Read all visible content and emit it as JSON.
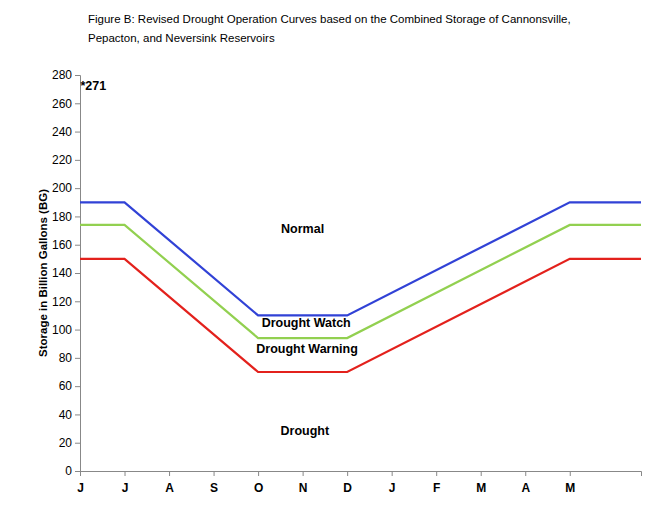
{
  "chart_data": {
    "type": "line",
    "title": [
      "Figure B: Revised Drought Operation Curves based on the Combined Storage of Cannonsville,",
      "Pepacton, and Neversink Reservoirs"
    ],
    "y_label": "Storage in Billion Gallons (BG)",
    "x": [
      0,
      1,
      4,
      6,
      11,
      12.6
    ],
    "xlim": [
      0,
      12.6
    ],
    "xticks": [
      {
        "value": 0,
        "label": "J"
      },
      {
        "value": 1,
        "label": "J"
      },
      {
        "value": 2,
        "label": "A"
      },
      {
        "value": 3,
        "label": "S"
      },
      {
        "value": 4,
        "label": "O"
      },
      {
        "value": 5,
        "label": "N"
      },
      {
        "value": 6,
        "label": "D"
      },
      {
        "value": 7,
        "label": "J"
      },
      {
        "value": 8,
        "label": "F"
      },
      {
        "value": 9,
        "label": "M"
      },
      {
        "value": 10,
        "label": "A"
      },
      {
        "value": 11,
        "label": "M"
      }
    ],
    "ylim": [
      0,
      280
    ],
    "yticks": [
      0,
      20,
      40,
      60,
      80,
      100,
      120,
      140,
      160,
      180,
      200,
      220,
      240,
      260,
      280
    ],
    "grid": false,
    "series": [
      {
        "color": "#3142d6",
        "values": [
          190,
          190,
          110,
          110,
          190,
          190
        ]
      },
      {
        "color": "#92d050",
        "values": [
          174,
          174,
          94,
          94,
          174,
          174
        ]
      },
      {
        "color": "#e3211c",
        "values": [
          150,
          150,
          70,
          70,
          150,
          150
        ]
      }
    ],
    "annotations": [
      {
        "text": "*271",
        "x": 0.3,
        "y": 272
      },
      {
        "text": "Normal",
        "x": 5.0,
        "y": 171
      },
      {
        "text": "Drought Watch",
        "x": 5.08,
        "y": 105
      },
      {
        "text": "Drought Warning",
        "x": 5.1,
        "y": 86
      },
      {
        "text": "Drought",
        "x": 5.05,
        "y": 28
      }
    ]
  }
}
